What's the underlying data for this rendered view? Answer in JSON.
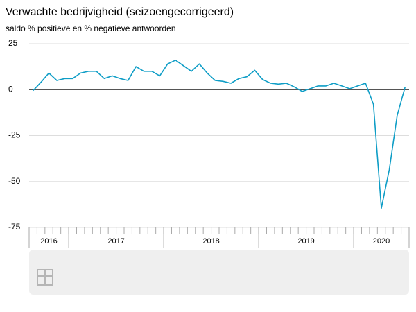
{
  "chart_data": {
    "type": "line",
    "title": "Verwachte bedrijvigheid (seizoengecorrigeerd)",
    "subtitle": "saldo % positieve en % negatieve antwoorden",
    "categories": [
      null,
      null,
      null,
      null,
      null,
      null,
      null,
      null,
      null,
      null,
      null,
      null,
      null,
      null,
      null,
      null,
      null,
      null,
      null,
      null,
      null,
      null,
      null,
      null,
      null,
      null,
      null,
      null,
      null,
      null,
      null,
      null,
      null,
      null,
      null,
      null,
      null,
      null,
      null,
      null,
      null,
      null,
      null,
      null,
      null,
      null,
      null,
      null
    ],
    "x_groups": [
      {
        "label": "2016",
        "count": 5
      },
      {
        "label": "2017",
        "count": 12
      },
      {
        "label": "2018",
        "count": 12
      },
      {
        "label": "2019",
        "count": 12
      },
      {
        "label": "2020",
        "count": 7
      }
    ],
    "series": [
      {
        "color": "#0e9dc6",
        "values": [
          -0.5,
          4,
          9,
          5,
          6,
          6,
          9,
          10,
          10,
          6,
          7.5,
          6,
          5,
          12.5,
          10,
          10,
          7.5,
          14,
          16,
          13,
          10,
          14,
          9,
          5,
          4.5,
          3.5,
          6,
          7,
          10.5,
          5.5,
          3.5,
          3,
          3.5,
          1.5,
          -1,
          0.5,
          2,
          2,
          3.5,
          2,
          0.5,
          2,
          3.5,
          -8,
          -64.5,
          -43.5,
          -14,
          1.5
        ]
      }
    ],
    "ylim": [
      -75,
      25
    ],
    "yticks": [
      25,
      0,
      -25,
      -50,
      -75
    ],
    "grid": true
  }
}
